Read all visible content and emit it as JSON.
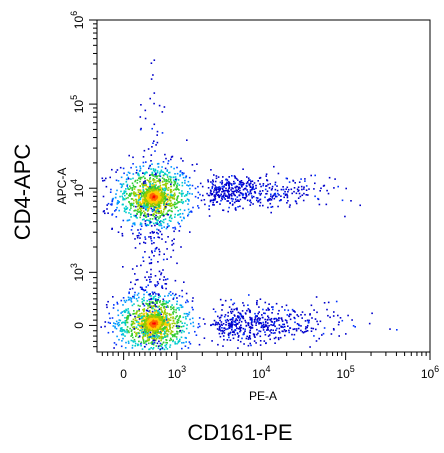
{
  "chart_data": {
    "type": "scatter",
    "title": "",
    "outer_xlabel": "CD161-PE",
    "outer_ylabel": "CD4-APC",
    "xlabel": "PE-A",
    "ylabel": "APC-A",
    "x_scale": "biexponential",
    "y_scale": "biexponential",
    "xlim": [
      -500,
      1000000
    ],
    "ylim": [
      -500,
      1000000
    ],
    "x_ticks": [
      {
        "value": 0,
        "base": "0",
        "exp": ""
      },
      {
        "value": 1000,
        "base": "10",
        "exp": "3"
      },
      {
        "value": 10000,
        "base": "10",
        "exp": "4"
      },
      {
        "value": 100000,
        "base": "10",
        "exp": "5"
      },
      {
        "value": 1000000,
        "base": "10",
        "exp": "6"
      }
    ],
    "y_ticks": [
      {
        "value": 0,
        "base": "0",
        "exp": ""
      },
      {
        "value": 1000,
        "base": "10",
        "exp": "3"
      },
      {
        "value": 10000,
        "base": "10",
        "exp": "4"
      },
      {
        "value": 100000,
        "base": "10",
        "exp": "5"
      },
      {
        "value": 1000000,
        "base": "10",
        "exp": "6"
      }
    ],
    "color_scale": "density (blue-cyan-green-yellow-red)",
    "grid": false,
    "populations": [
      {
        "cx": 550,
        "cy": 8000,
        "spread_x": 0.06,
        "spread_y": 0.05,
        "count": 900,
        "density": "high"
      },
      {
        "cx": 550,
        "cy": 50,
        "spread_x": 0.06,
        "spread_y": 0.05,
        "count": 900,
        "density": "high"
      },
      {
        "cx": 4000,
        "cy": 9500,
        "spread_x": 0.18,
        "spread_y": 0.025,
        "count": 450,
        "density": "low"
      },
      {
        "cx": 5000,
        "cy": 20,
        "spread_x": 0.18,
        "spread_y": 0.03,
        "count": 500,
        "density": "low"
      },
      {
        "cx": 550,
        "cy": 1200,
        "spread_x": 0.03,
        "spread_y": 0.25,
        "count": 350,
        "density": "low"
      }
    ]
  }
}
